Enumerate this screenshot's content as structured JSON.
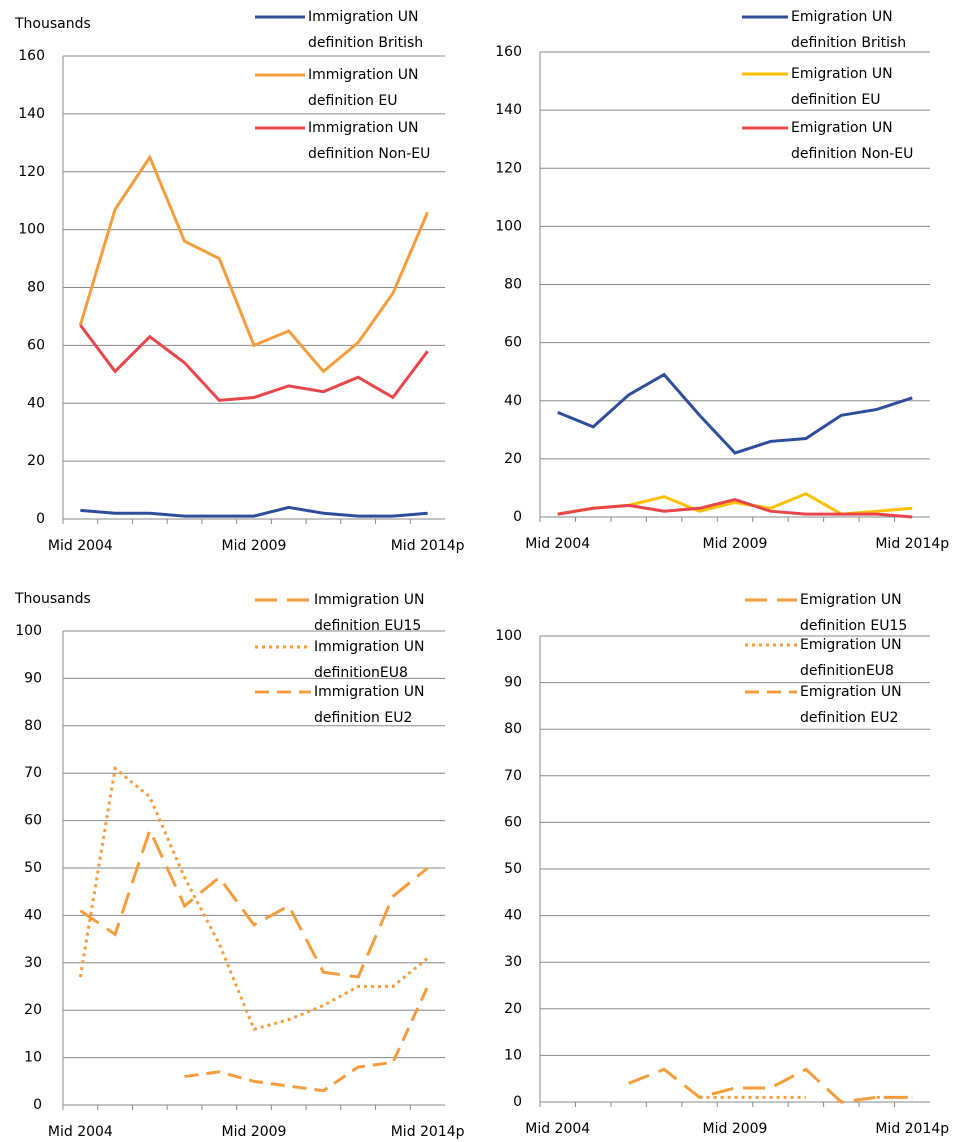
{
  "chart_data": [
    {
      "type": "line",
      "ylabel": "Thousands",
      "categories": [
        "Mid 2004",
        null,
        null,
        null,
        null,
        "Mid 2009",
        null,
        null,
        null,
        null,
        "Mid 2014p"
      ],
      "ylim": [
        0,
        160
      ],
      "yticks": [
        0,
        20,
        40,
        60,
        80,
        100,
        120,
        140,
        160
      ],
      "grid": true,
      "series": [
        {
          "name": "Immigration  UN definition British",
          "color": "#2e4d9b",
          "dash": "solid",
          "values": [
            3,
            2,
            2,
            1,
            1,
            1,
            4,
            2,
            1,
            1,
            2
          ]
        },
        {
          "name": "Immigration  UN definition EU",
          "color": "#f59d3d",
          "dash": "solid",
          "values": [
            67,
            107,
            125,
            96,
            90,
            60,
            65,
            51,
            61,
            78,
            106
          ]
        },
        {
          "name": "Immigration  UN definition Non-EU",
          "color": "#e8464b",
          "dash": "solid",
          "values": [
            67,
            51,
            63,
            54,
            41,
            42,
            46,
            44,
            49,
            42,
            58
          ]
        }
      ]
    },
    {
      "type": "line",
      "categories": [
        "Mid 2004",
        null,
        null,
        null,
        null,
        "Mid 2009",
        null,
        null,
        null,
        null,
        "Mid 2014p"
      ],
      "ylim": [
        0,
        160
      ],
      "yticks": [
        0,
        20,
        40,
        60,
        80,
        100,
        120,
        140,
        160
      ],
      "grid": true,
      "series": [
        {
          "name": "Emigration  UN definition British",
          "color": "#2e4d9b",
          "dash": "solid",
          "values": [
            36,
            31,
            42,
            49,
            35,
            22,
            26,
            27,
            35,
            37,
            41
          ]
        },
        {
          "name": "Emigration  UN definition EU",
          "color": "#ffc000",
          "dash": "solid",
          "values": [
            1,
            3,
            4,
            7,
            2,
            5,
            3,
            8,
            1,
            2,
            3
          ]
        },
        {
          "name": "Emigration  UN definition Non-EU",
          "color": "#e8464b",
          "dash": "solid",
          "values": [
            1,
            3,
            4,
            2,
            3,
            6,
            2,
            1,
            1,
            1,
            0
          ]
        }
      ]
    },
    {
      "type": "line",
      "ylabel": "Thousands",
      "categories": [
        "Mid 2004",
        null,
        null,
        null,
        null,
        "Mid 2009",
        null,
        null,
        null,
        null,
        "Mid 2014p"
      ],
      "ylim": [
        0,
        100
      ],
      "yticks": [
        0,
        10,
        20,
        30,
        40,
        50,
        60,
        70,
        80,
        90,
        100
      ],
      "grid": true,
      "series": [
        {
          "name": "Immigration UN definition EU15",
          "color": "#f59d3d",
          "dash": "long",
          "values": [
            41,
            36,
            58,
            42,
            48,
            38,
            42,
            28,
            27,
            44,
            50
          ]
        },
        {
          "name": "Immigration UN definitionEU8",
          "color": "#f59d3d",
          "dash": "dotted",
          "values": [
            27,
            71,
            65,
            48,
            34,
            16,
            18,
            21,
            25,
            25,
            31
          ]
        },
        {
          "name": "Immigration UN definition EU2",
          "color": "#f59d3d",
          "dash": "dashed",
          "values": [
            null,
            null,
            null,
            6,
            7,
            5,
            4,
            3,
            8,
            9,
            25
          ]
        }
      ]
    },
    {
      "type": "line",
      "categories": [
        "Mid 2004",
        null,
        null,
        null,
        null,
        "Mid 2009",
        null,
        null,
        null,
        null,
        "Mid 2014p"
      ],
      "ylim": [
        0,
        100
      ],
      "yticks": [
        0,
        10,
        20,
        30,
        40,
        50,
        60,
        70,
        80,
        90,
        100
      ],
      "grid": true,
      "series": [
        {
          "name": "Emigration UN definition EU15",
          "color": "#f59d3d",
          "dash": "long",
          "values": [
            null,
            null,
            4,
            7,
            1,
            3,
            3,
            7,
            0,
            1,
            1
          ]
        },
        {
          "name": "Emigration UN definitionEU8",
          "color": "#f59d3d",
          "dash": "dotted",
          "values": [
            null,
            null,
            null,
            null,
            1,
            1,
            1,
            1,
            null,
            1,
            1
          ]
        },
        {
          "name": "Emigration UN definition EU2",
          "color": "#f59d3d",
          "dash": "dashed",
          "values": [
            null,
            null,
            null,
            null,
            null,
            null,
            null,
            null,
            null,
            null,
            null
          ]
        }
      ]
    }
  ]
}
